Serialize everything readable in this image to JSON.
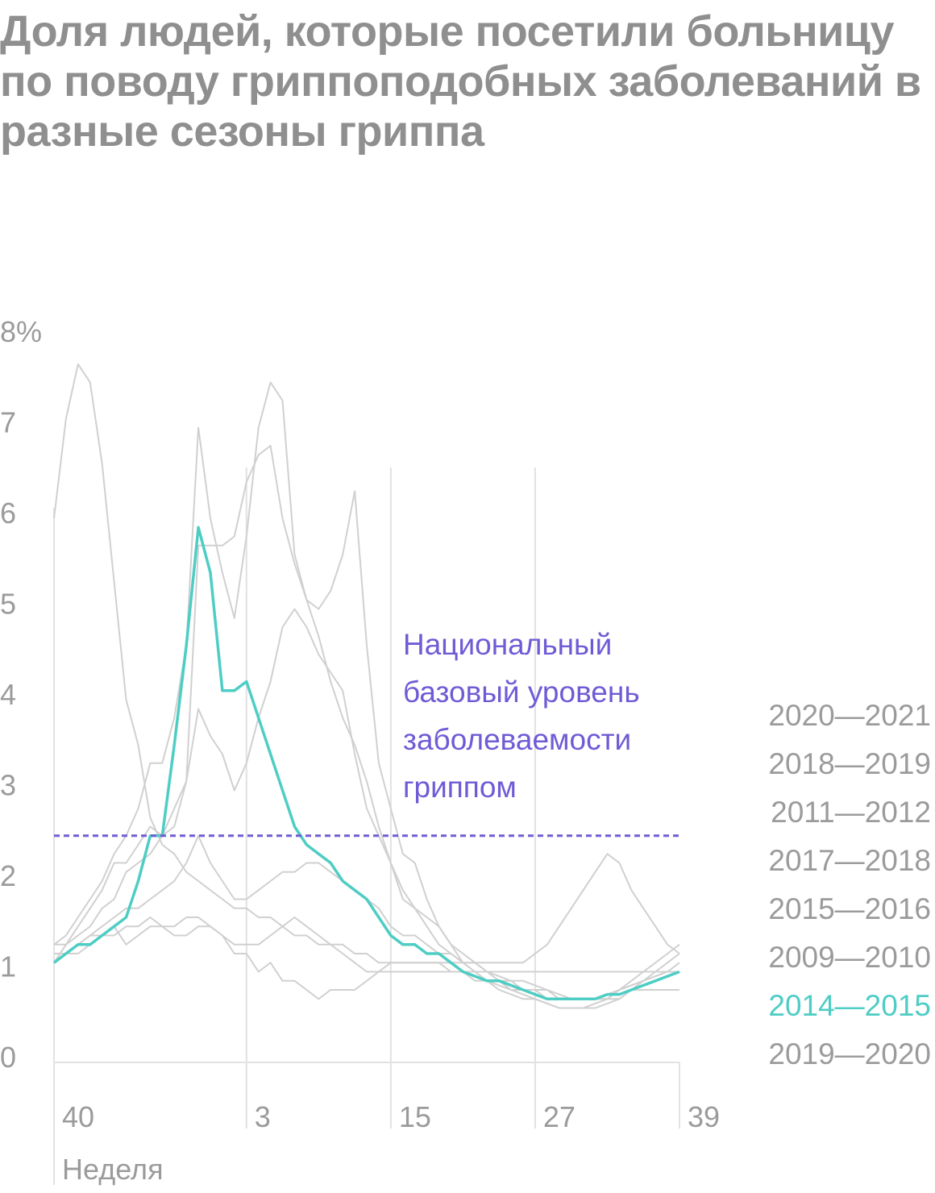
{
  "chart_data": {
    "type": "line",
    "title": "Доля людей, которые посетили больницу по поводу гриппоподобных заболеваний в разные сезоны гриппа",
    "xlabel": "Неделя",
    "ylabel": "",
    "y_ticks": [
      "8%",
      "7",
      "6",
      "5",
      "4",
      "3",
      "2",
      "1",
      "0"
    ],
    "ylim": [
      0,
      8
    ],
    "x_ticks": [
      "40",
      "3",
      "15",
      "27",
      "39"
    ],
    "x_tick_index": [
      0,
      16,
      28,
      40,
      52
    ],
    "x_range_index": [
      0,
      52
    ],
    "grid": "vertical",
    "legend_position": "right",
    "baseline": {
      "value": 2.5,
      "label_lines": [
        "Национальный",
        "базовый уровень",
        "заболеваемости",
        "гриппом"
      ],
      "color": "#6f5bd6"
    },
    "colors": {
      "highlight": "#4ecdc4",
      "other": "#d0d0d0",
      "text": "#9b9b9b"
    },
    "highlight_series": "2014—2015",
    "series": [
      {
        "name": "2020—2021",
        "values": [
          1.1,
          1.2,
          1.3,
          1.4,
          1.4,
          1.5,
          1.3,
          1.4,
          1.5,
          1.5,
          1.4,
          1.4,
          1.5,
          1.5,
          1.4,
          1.2,
          1.2,
          1.0,
          1.1,
          0.9,
          0.9,
          0.8,
          0.7,
          0.8,
          0.8,
          0.8,
          0.9,
          1.0,
          1.1,
          1.1,
          1.1,
          1.1,
          1.1,
          1.0,
          1.0,
          0.9,
          0.9,
          0.9,
          0.8,
          0.8,
          0.8,
          0.8,
          0.7,
          0.7,
          0.7,
          0.7,
          0.7,
          0.7,
          0.8,
          0.8,
          0.8,
          0.8,
          0.8
        ]
      },
      {
        "name": "2018—2019",
        "values": [
          1.3,
          1.3,
          1.4,
          1.5,
          1.7,
          1.8,
          2.1,
          2.2,
          2.3,
          2.5,
          2.8,
          3.1,
          3.9,
          3.6,
          3.4,
          3.0,
          3.3,
          3.8,
          4.2,
          4.8,
          5.0,
          4.8,
          4.5,
          4.3,
          4.1,
          3.4,
          2.8,
          2.5,
          2.2,
          1.8,
          1.7,
          1.6,
          1.5,
          1.3,
          1.2,
          1.1,
          1.0,
          0.95,
          0.9,
          0.9,
          0.85,
          0.8,
          0.75,
          0.7,
          0.7,
          0.7,
          0.75,
          0.8,
          0.85,
          0.9,
          0.95,
          1.0,
          1.0
        ]
      },
      {
        "name": "2011—2012",
        "values": [
          1.2,
          1.2,
          1.2,
          1.3,
          1.4,
          1.4,
          1.5,
          1.5,
          1.6,
          1.5,
          1.5,
          1.6,
          1.6,
          1.5,
          1.4,
          1.3,
          1.3,
          1.3,
          1.4,
          1.5,
          1.6,
          1.5,
          1.4,
          1.3,
          1.2,
          1.1,
          1.0,
          1.0,
          1.0,
          1.0,
          1.0,
          1.0,
          1.0,
          1.0,
          1.0,
          1.0,
          1.0,
          1.0,
          1.0,
          1.0,
          1.0,
          1.0,
          1.0,
          1.0,
          1.0,
          1.0,
          1.0,
          1.0,
          1.0,
          1.0,
          1.0,
          1.0,
          1.0
        ]
      },
      {
        "name": "2017—2018",
        "values": [
          1.1,
          1.3,
          1.5,
          1.7,
          1.9,
          2.2,
          2.2,
          2.4,
          2.6,
          2.5,
          2.6,
          3.1,
          5.7,
          5.7,
          5.7,
          5.8,
          6.4,
          6.7,
          6.8,
          6.0,
          5.5,
          5.1,
          4.7,
          4.2,
          3.8,
          3.5,
          3.1,
          2.6,
          2.2,
          1.9,
          1.7,
          1.5,
          1.3,
          1.2,
          1.1,
          1.0,
          0.9,
          0.85,
          0.8,
          0.75,
          0.7,
          0.65,
          0.6,
          0.6,
          0.6,
          0.6,
          0.65,
          0.7,
          0.8,
          0.9,
          1.0,
          1.1,
          1.2
        ]
      },
      {
        "name": "2015—2016",
        "values": [
          1.2,
          1.2,
          1.3,
          1.4,
          1.5,
          1.6,
          1.7,
          1.7,
          1.8,
          1.9,
          2.0,
          2.2,
          2.5,
          2.2,
          2.0,
          1.8,
          1.8,
          1.9,
          2.0,
          2.1,
          2.1,
          2.2,
          2.2,
          2.1,
          2.0,
          1.9,
          1.8,
          1.7,
          1.5,
          1.4,
          1.4,
          1.3,
          1.2,
          1.2,
          1.1,
          1.1,
          1.0,
          0.9,
          0.9,
          0.8,
          0.8,
          0.7,
          0.7,
          0.7,
          0.7,
          0.7,
          0.7,
          0.8,
          0.85,
          0.9,
          0.95,
          1.0,
          1.1
        ]
      },
      {
        "name": "2009—2010",
        "values": [
          6.0,
          7.1,
          7.7,
          7.5,
          6.6,
          5.3,
          4.0,
          3.5,
          2.7,
          2.4,
          2.3,
          2.1,
          2.0,
          1.9,
          1.8,
          1.7,
          1.7,
          1.6,
          1.6,
          1.5,
          1.4,
          1.4,
          1.3,
          1.3,
          1.3,
          1.2,
          1.2,
          1.1,
          1.1,
          1.1,
          1.1,
          1.1,
          1.1,
          1.1,
          1.1,
          1.1,
          1.1,
          1.1,
          1.1,
          1.1,
          1.2,
          1.3,
          1.5,
          1.7,
          1.9,
          2.1,
          2.3,
          2.2,
          1.9,
          1.7,
          1.5,
          1.3,
          1.2
        ]
      },
      {
        "name": "2014—2015",
        "values": [
          1.1,
          1.2,
          1.3,
          1.3,
          1.4,
          1.5,
          1.6,
          2.0,
          2.5,
          2.5,
          3.5,
          4.6,
          5.9,
          5.4,
          4.1,
          4.1,
          4.2,
          3.8,
          3.4,
          3.0,
          2.6,
          2.4,
          2.3,
          2.2,
          2.0,
          1.9,
          1.8,
          1.6,
          1.4,
          1.3,
          1.3,
          1.2,
          1.2,
          1.1,
          1.0,
          0.95,
          0.9,
          0.9,
          0.85,
          0.8,
          0.75,
          0.7,
          0.7,
          0.7,
          0.7,
          0.7,
          0.75,
          0.75,
          0.8,
          0.85,
          0.9,
          0.95,
          1.0
        ]
      },
      {
        "name": "2019—2020",
        "values": [
          1.3,
          1.4,
          1.6,
          1.8,
          2.0,
          2.3,
          2.5,
          2.8,
          3.3,
          3.3,
          3.8,
          4.6,
          7.0,
          6.0,
          5.4,
          4.9,
          5.8,
          7.0,
          7.5,
          7.3,
          5.6,
          5.1,
          5.0,
          5.2,
          5.6,
          6.3,
          4.6,
          3.3,
          2.8,
          2.3,
          2.2,
          1.8,
          1.5,
          1.3,
          1.1,
          1.0,
          0.9,
          0.8,
          0.75,
          0.7,
          0.7,
          0.65,
          0.6,
          0.6,
          0.6,
          0.65,
          0.7,
          0.8,
          0.9,
          1.0,
          1.1,
          1.2,
          1.3
        ]
      }
    ]
  }
}
